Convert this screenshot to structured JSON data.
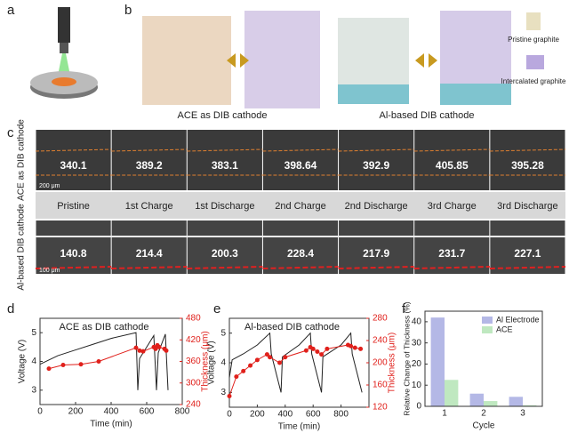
{
  "panel_labels": [
    "a",
    "b",
    "c",
    "d",
    "e",
    "f"
  ],
  "panel_b": {
    "legend": [
      "Pristine graphite",
      "Intercalated graphite"
    ]
  },
  "panel_c": {
    "titles": [
      "ACE as DIB cathode",
      "Al-based DIB cathode"
    ],
    "row_labels": [
      "ACE as DIB cathode",
      "Al-based DIB cathode"
    ],
    "stages": [
      "Pristine",
      "1st Charge",
      "1st Discharge",
      "2nd Charge",
      "2nd Discharge",
      "3rd Charge",
      "3rd Discharge"
    ],
    "ace_thickness": [
      "340.1",
      "389.2",
      "383.1",
      "398.64",
      "392.9",
      "405.85",
      "395.28"
    ],
    "al_thickness": [
      "140.8",
      "214.4",
      "200.3",
      "228.4",
      "217.9",
      "231.7",
      "227.1"
    ],
    "scale_bars": [
      "200 μm",
      "100 μm"
    ]
  },
  "chart_data": [
    {
      "type": "line",
      "title": "ACE as DIB cathode",
      "xlabel": "Time (min)",
      "ylabel": "Voltage (V)",
      "y2label": "Thickness (μm)",
      "xlim": [
        0,
        800
      ],
      "xticks": [
        0,
        200,
        400,
        600,
        800
      ],
      "ylim": [
        2.5,
        5.5
      ],
      "yticks": [
        3,
        4,
        5
      ],
      "y2lim": [
        240,
        480
      ],
      "y2ticks": [
        240,
        300,
        360,
        420,
        480
      ],
      "y2color": "#e0201b",
      "series": [
        {
          "color": "#222222",
          "x": [
            0,
            100,
            200,
            300,
            400,
            540,
            550,
            560,
            640,
            655,
            665,
            705,
            720
          ],
          "values": [
            3.9,
            4.2,
            4.4,
            4.6,
            4.8,
            5.0,
            3.0,
            4.1,
            4.9,
            3.0,
            4.3,
            4.95,
            3.0
          ]
        },
        {
          "color": "#e0201b",
          "axis": "y2",
          "markers": true,
          "x": [
            50,
            130,
            230,
            330,
            540,
            560,
            580,
            640,
            650,
            660,
            670,
            700,
            710
          ],
          "values": [
            340,
            350,
            352,
            360,
            398,
            390,
            388,
            400,
            395,
            405,
            400,
            395,
            390
          ]
        }
      ]
    },
    {
      "type": "line",
      "title": "Al-based DIB cathode",
      "xlabel": "Time (min)",
      "ylabel": "Voltage (V)",
      "y2label": "Thickness (μm)",
      "xlim": [
        0,
        1000
      ],
      "xticks": [
        0,
        200,
        400,
        600,
        800
      ],
      "ylim": [
        2.5,
        5.5
      ],
      "yticks": [
        3,
        4,
        5
      ],
      "y2lim": [
        120,
        280
      ],
      "y2ticks": [
        120,
        160,
        200,
        240,
        280
      ],
      "y2color": "#e0201b",
      "series": [
        {
          "color": "#222222",
          "x": [
            0,
            20,
            100,
            200,
            290,
            300,
            370,
            380,
            500,
            580,
            590,
            660,
            670,
            800,
            870,
            880,
            950
          ],
          "values": [
            3.5,
            4.1,
            4.3,
            4.6,
            5.0,
            4.3,
            3.0,
            4.2,
            4.6,
            5.0,
            4.3,
            3.0,
            4.2,
            4.6,
            5.0,
            4.3,
            3.0
          ]
        },
        {
          "color": "#e0201b",
          "axis": "y2",
          "markers": true,
          "x": [
            0,
            50,
            100,
            150,
            200,
            270,
            290,
            360,
            400,
            550,
            580,
            600,
            630,
            660,
            700,
            850,
            870,
            900,
            940
          ],
          "values": [
            140,
            175,
            185,
            195,
            205,
            215,
            210,
            200,
            210,
            222,
            228,
            225,
            220,
            215,
            225,
            232,
            230,
            227,
            225
          ]
        }
      ]
    },
    {
      "type": "bar",
      "xlabel": "Cycle",
      "ylabel": "Relative Change of Thickness (%)",
      "categories": [
        "1",
        "2",
        "3"
      ],
      "ylim": [
        0,
        45
      ],
      "yticks": [
        0,
        10,
        20,
        30,
        40
      ],
      "legend": "upper right",
      "series": [
        {
          "name": "Al Electrode",
          "color": "#b4b8e6",
          "values": [
            42,
            6,
            4.5
          ]
        },
        {
          "name": "ACE",
          "color": "#bfe8c0",
          "values": [
            12.5,
            2.5,
            0.5
          ]
        }
      ]
    }
  ]
}
